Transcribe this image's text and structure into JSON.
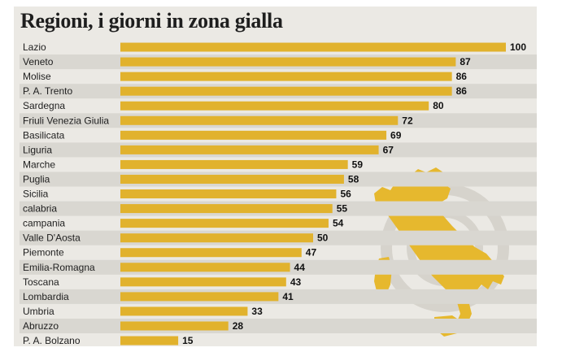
{
  "colors": {
    "bar": "#e1b22d",
    "stripe": "#d9d7d1",
    "background": "#ebe9e4",
    "map": "#e6b82e"
  },
  "chart_data": {
    "type": "bar",
    "orientation": "horizontal",
    "title": "Regioni, i giorni in zona gialla",
    "categories": [
      "Lazio",
      "Veneto",
      "Molise",
      "P. A. Trento",
      "Sardegna",
      "Friuli Venezia Giulia",
      "Basilicata",
      "Liguria",
      "Marche",
      "Puglia",
      "Sicilia",
      "calabria",
      "campania",
      "Valle D'Aosta",
      "Piemonte",
      "Emilia-Romagna",
      "Toscana",
      "Lombardia",
      "Umbria",
      "Abruzzo",
      "P. A. Bolzano"
    ],
    "values": [
      100,
      87,
      86,
      86,
      80,
      72,
      69,
      67,
      59,
      58,
      56,
      55,
      54,
      50,
      47,
      44,
      43,
      41,
      33,
      28,
      15
    ],
    "xlim": [
      0,
      100
    ],
    "grid": false,
    "legend": "none"
  }
}
